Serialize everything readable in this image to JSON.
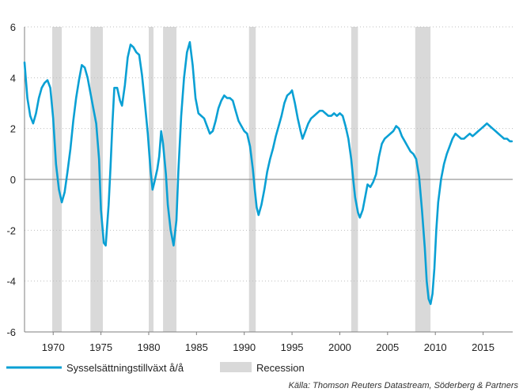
{
  "chart_data": {
    "type": "line",
    "title": "",
    "xlabel": "",
    "ylabel": "",
    "xlim": [
      1967,
      2018.1
    ],
    "ylim": [
      -6,
      6
    ],
    "y_ticks": [
      6,
      4,
      2,
      0,
      -2,
      -4,
      -6
    ],
    "y_tick_labels": [
      "6",
      "4",
      "2",
      "0",
      "-2",
      "-4",
      "-6"
    ],
    "x_ticks": [
      1970,
      1975,
      1980,
      1985,
      1990,
      1995,
      2000,
      2005,
      2010,
      2015
    ],
    "x_tick_labels": [
      "1970",
      "1975",
      "1980",
      "1985",
      "1990",
      "1995",
      "2000",
      "2005",
      "2010",
      "2015"
    ],
    "grid": "horizontal dotted",
    "legend_position": "bottom-left",
    "source": "Källa: Thomson Reuters Datastream, Söderberg & Partners",
    "series": [
      {
        "name": "Sysselsättningstillväxt å/å",
        "color": "#0aa0d4",
        "points": [
          [
            1967.0,
            4.6
          ],
          [
            1967.3,
            3.2
          ],
          [
            1967.6,
            2.5
          ],
          [
            1967.9,
            2.2
          ],
          [
            1968.2,
            2.6
          ],
          [
            1968.5,
            3.2
          ],
          [
            1968.8,
            3.6
          ],
          [
            1969.1,
            3.8
          ],
          [
            1969.4,
            3.9
          ],
          [
            1969.7,
            3.6
          ],
          [
            1970.0,
            2.4
          ],
          [
            1970.3,
            0.6
          ],
          [
            1970.6,
            -0.4
          ],
          [
            1970.9,
            -0.9
          ],
          [
            1971.2,
            -0.5
          ],
          [
            1971.5,
            0.3
          ],
          [
            1971.8,
            1.2
          ],
          [
            1972.1,
            2.3
          ],
          [
            1972.4,
            3.2
          ],
          [
            1972.7,
            3.9
          ],
          [
            1973.0,
            4.5
          ],
          [
            1973.3,
            4.4
          ],
          [
            1973.6,
            4.0
          ],
          [
            1973.9,
            3.4
          ],
          [
            1974.2,
            2.8
          ],
          [
            1974.5,
            2.2
          ],
          [
            1974.8,
            0.8
          ],
          [
            1975.0,
            -1.2
          ],
          [
            1975.3,
            -2.5
          ],
          [
            1975.5,
            -2.6
          ],
          [
            1975.8,
            -1.0
          ],
          [
            1976.0,
            0.5
          ],
          [
            1976.2,
            2.2
          ],
          [
            1976.4,
            3.6
          ],
          [
            1976.7,
            3.6
          ],
          [
            1977.0,
            3.1
          ],
          [
            1977.2,
            2.9
          ],
          [
            1977.5,
            3.7
          ],
          [
            1977.8,
            4.8
          ],
          [
            1978.1,
            5.3
          ],
          [
            1978.4,
            5.2
          ],
          [
            1978.7,
            5.0
          ],
          [
            1979.0,
            4.9
          ],
          [
            1979.3,
            4.1
          ],
          [
            1979.6,
            3.0
          ],
          [
            1979.9,
            1.8
          ],
          [
            1980.2,
            0.3
          ],
          [
            1980.4,
            -0.4
          ],
          [
            1980.6,
            -0.1
          ],
          [
            1980.9,
            0.4
          ],
          [
            1981.1,
            0.9
          ],
          [
            1981.3,
            1.9
          ],
          [
            1981.5,
            1.4
          ],
          [
            1981.8,
            0.2
          ],
          [
            1982.0,
            -1.0
          ],
          [
            1982.3,
            -2.0
          ],
          [
            1982.6,
            -2.6
          ],
          [
            1982.9,
            -1.6
          ],
          [
            1983.1,
            0.3
          ],
          [
            1983.4,
            2.5
          ],
          [
            1983.7,
            4.0
          ],
          [
            1984.0,
            5.0
          ],
          [
            1984.3,
            5.4
          ],
          [
            1984.6,
            4.5
          ],
          [
            1984.9,
            3.2
          ],
          [
            1985.2,
            2.6
          ],
          [
            1985.5,
            2.5
          ],
          [
            1985.8,
            2.4
          ],
          [
            1986.1,
            2.1
          ],
          [
            1986.4,
            1.8
          ],
          [
            1986.7,
            1.9
          ],
          [
            1987.0,
            2.3
          ],
          [
            1987.3,
            2.8
          ],
          [
            1987.6,
            3.1
          ],
          [
            1987.9,
            3.3
          ],
          [
            1988.2,
            3.2
          ],
          [
            1988.5,
            3.2
          ],
          [
            1988.8,
            3.1
          ],
          [
            1989.1,
            2.7
          ],
          [
            1989.4,
            2.3
          ],
          [
            1989.7,
            2.1
          ],
          [
            1990.0,
            1.9
          ],
          [
            1990.3,
            1.8
          ],
          [
            1990.6,
            1.3
          ],
          [
            1990.9,
            0.4
          ],
          [
            1991.1,
            -0.4
          ],
          [
            1991.3,
            -1.1
          ],
          [
            1991.5,
            -1.4
          ],
          [
            1991.8,
            -1.0
          ],
          [
            1992.1,
            -0.4
          ],
          [
            1992.4,
            0.3
          ],
          [
            1992.7,
            0.8
          ],
          [
            1993.0,
            1.2
          ],
          [
            1993.3,
            1.7
          ],
          [
            1993.6,
            2.1
          ],
          [
            1993.9,
            2.5
          ],
          [
            1994.2,
            3.0
          ],
          [
            1994.5,
            3.3
          ],
          [
            1994.8,
            3.4
          ],
          [
            1995.0,
            3.5
          ],
          [
            1995.3,
            3.0
          ],
          [
            1995.6,
            2.4
          ],
          [
            1995.9,
            1.9
          ],
          [
            1996.1,
            1.6
          ],
          [
            1996.4,
            1.9
          ],
          [
            1996.7,
            2.2
          ],
          [
            1997.0,
            2.4
          ],
          [
            1997.3,
            2.5
          ],
          [
            1997.6,
            2.6
          ],
          [
            1997.9,
            2.7
          ],
          [
            1998.2,
            2.7
          ],
          [
            1998.5,
            2.6
          ],
          [
            1998.8,
            2.5
          ],
          [
            1999.1,
            2.5
          ],
          [
            1999.4,
            2.6
          ],
          [
            1999.7,
            2.5
          ],
          [
            2000.0,
            2.6
          ],
          [
            2000.3,
            2.5
          ],
          [
            2000.6,
            2.1
          ],
          [
            2000.9,
            1.6
          ],
          [
            2001.2,
            0.8
          ],
          [
            2001.4,
            0.0
          ],
          [
            2001.6,
            -0.7
          ],
          [
            2001.9,
            -1.3
          ],
          [
            2002.1,
            -1.5
          ],
          [
            2002.4,
            -1.2
          ],
          [
            2002.7,
            -0.6
          ],
          [
            2002.9,
            -0.2
          ],
          [
            2003.2,
            -0.3
          ],
          [
            2003.5,
            -0.1
          ],
          [
            2003.8,
            0.2
          ],
          [
            2004.1,
            0.9
          ],
          [
            2004.4,
            1.4
          ],
          [
            2004.7,
            1.6
          ],
          [
            2005.0,
            1.7
          ],
          [
            2005.3,
            1.8
          ],
          [
            2005.6,
            1.9
          ],
          [
            2005.9,
            2.1
          ],
          [
            2006.2,
            2.0
          ],
          [
            2006.5,
            1.7
          ],
          [
            2006.8,
            1.5
          ],
          [
            2007.1,
            1.3
          ],
          [
            2007.4,
            1.1
          ],
          [
            2007.7,
            1.0
          ],
          [
            2008.0,
            0.8
          ],
          [
            2008.3,
            0.1
          ],
          [
            2008.6,
            -1.2
          ],
          [
            2008.9,
            -2.7
          ],
          [
            2009.1,
            -4.0
          ],
          [
            2009.3,
            -4.7
          ],
          [
            2009.5,
            -4.9
          ],
          [
            2009.7,
            -4.5
          ],
          [
            2009.9,
            -3.5
          ],
          [
            2010.1,
            -2.0
          ],
          [
            2010.3,
            -0.9
          ],
          [
            2010.6,
            0.0
          ],
          [
            2010.9,
            0.6
          ],
          [
            2011.2,
            1.0
          ],
          [
            2011.5,
            1.3
          ],
          [
            2011.8,
            1.6
          ],
          [
            2012.1,
            1.8
          ],
          [
            2012.4,
            1.7
          ],
          [
            2012.7,
            1.6
          ],
          [
            2013.0,
            1.6
          ],
          [
            2013.3,
            1.7
          ],
          [
            2013.6,
            1.8
          ],
          [
            2013.9,
            1.7
          ],
          [
            2014.2,
            1.8
          ],
          [
            2014.5,
            1.9
          ],
          [
            2014.8,
            2.0
          ],
          [
            2015.1,
            2.1
          ],
          [
            2015.4,
            2.2
          ],
          [
            2015.7,
            2.1
          ],
          [
            2016.0,
            2.0
          ],
          [
            2016.3,
            1.9
          ],
          [
            2016.6,
            1.8
          ],
          [
            2016.9,
            1.7
          ],
          [
            2017.2,
            1.6
          ],
          [
            2017.5,
            1.6
          ],
          [
            2017.8,
            1.5
          ],
          [
            2018.0,
            1.5
          ]
        ]
      }
    ],
    "recessions": {
      "name": "Recession",
      "color": "#d9d9d9",
      "periods": [
        [
          1969.9,
          1970.9
        ],
        [
          1973.9,
          1975.2
        ],
        [
          1980.0,
          1980.5
        ],
        [
          1981.5,
          1982.9
        ],
        [
          1990.5,
          1991.2
        ],
        [
          2001.2,
          2001.9
        ],
        [
          2007.9,
          2009.5
        ]
      ]
    }
  }
}
